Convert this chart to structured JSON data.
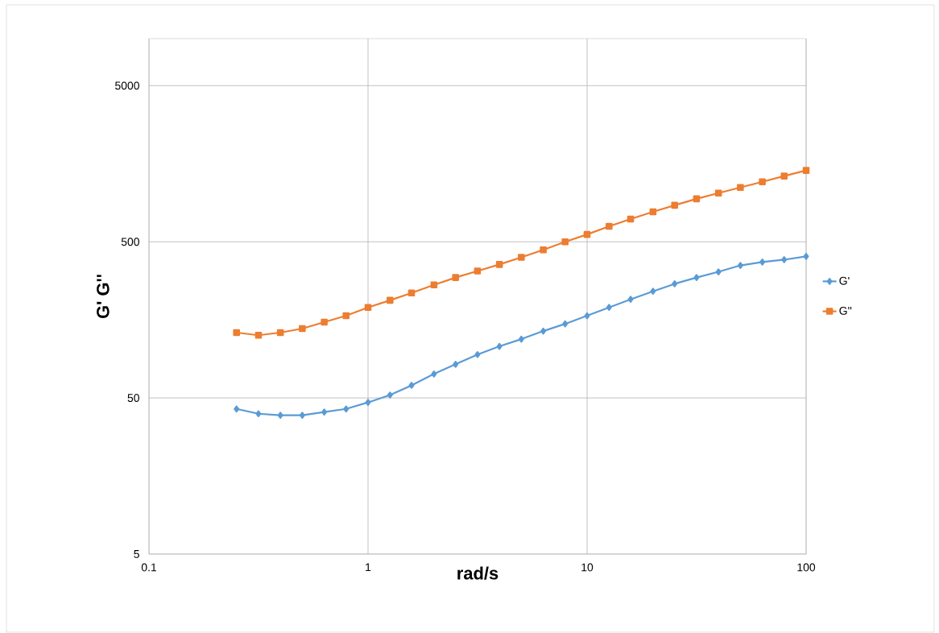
{
  "chart_data": {
    "type": "line",
    "xlabel": "rad/s",
    "ylabel": "G' G''",
    "log": "xy",
    "grid": true,
    "legend": "right",
    "xlim": [
      0.1,
      100
    ],
    "xticks": [
      {
        "value": 0.1,
        "label": "0.1"
      },
      1,
      10,
      100
    ],
    "ylim": [
      5,
      10000
    ],
    "yticks": [
      5,
      50,
      500,
      5000
    ],
    "x": [
      0.251,
      0.316,
      0.398,
      0.501,
      0.631,
      0.794,
      1,
      1.26,
      1.58,
      2,
      2.51,
      3.16,
      3.98,
      5.01,
      6.31,
      7.94,
      10,
      12.6,
      15.8,
      20,
      25.1,
      31.6,
      39.8,
      50.1,
      63.1,
      79.4,
      100
    ],
    "series": [
      {
        "name": "G'",
        "color": "#5b9bd5",
        "marker": "diamond",
        "values": [
          42.5,
          39.6,
          38.7,
          38.7,
          40.6,
          42.5,
          46.8,
          52.2,
          60.2,
          71.2,
          82.1,
          94.8,
          107,
          119,
          134,
          149,
          168,
          190,
          214,
          241,
          269,
          295,
          321,
          353,
          371,
          384,
          403
        ]
      },
      {
        "name": "G''",
        "color": "#ed7d31",
        "marker": "square",
        "values": [
          131,
          126,
          131,
          139,
          153,
          168,
          190,
          211,
          235,
          265,
          295,
          325,
          358,
          398,
          444,
          500,
          557,
          628,
          699,
          778,
          857,
          942,
          1026,
          1114,
          1211,
          1318,
          1432
        ]
      }
    ]
  }
}
